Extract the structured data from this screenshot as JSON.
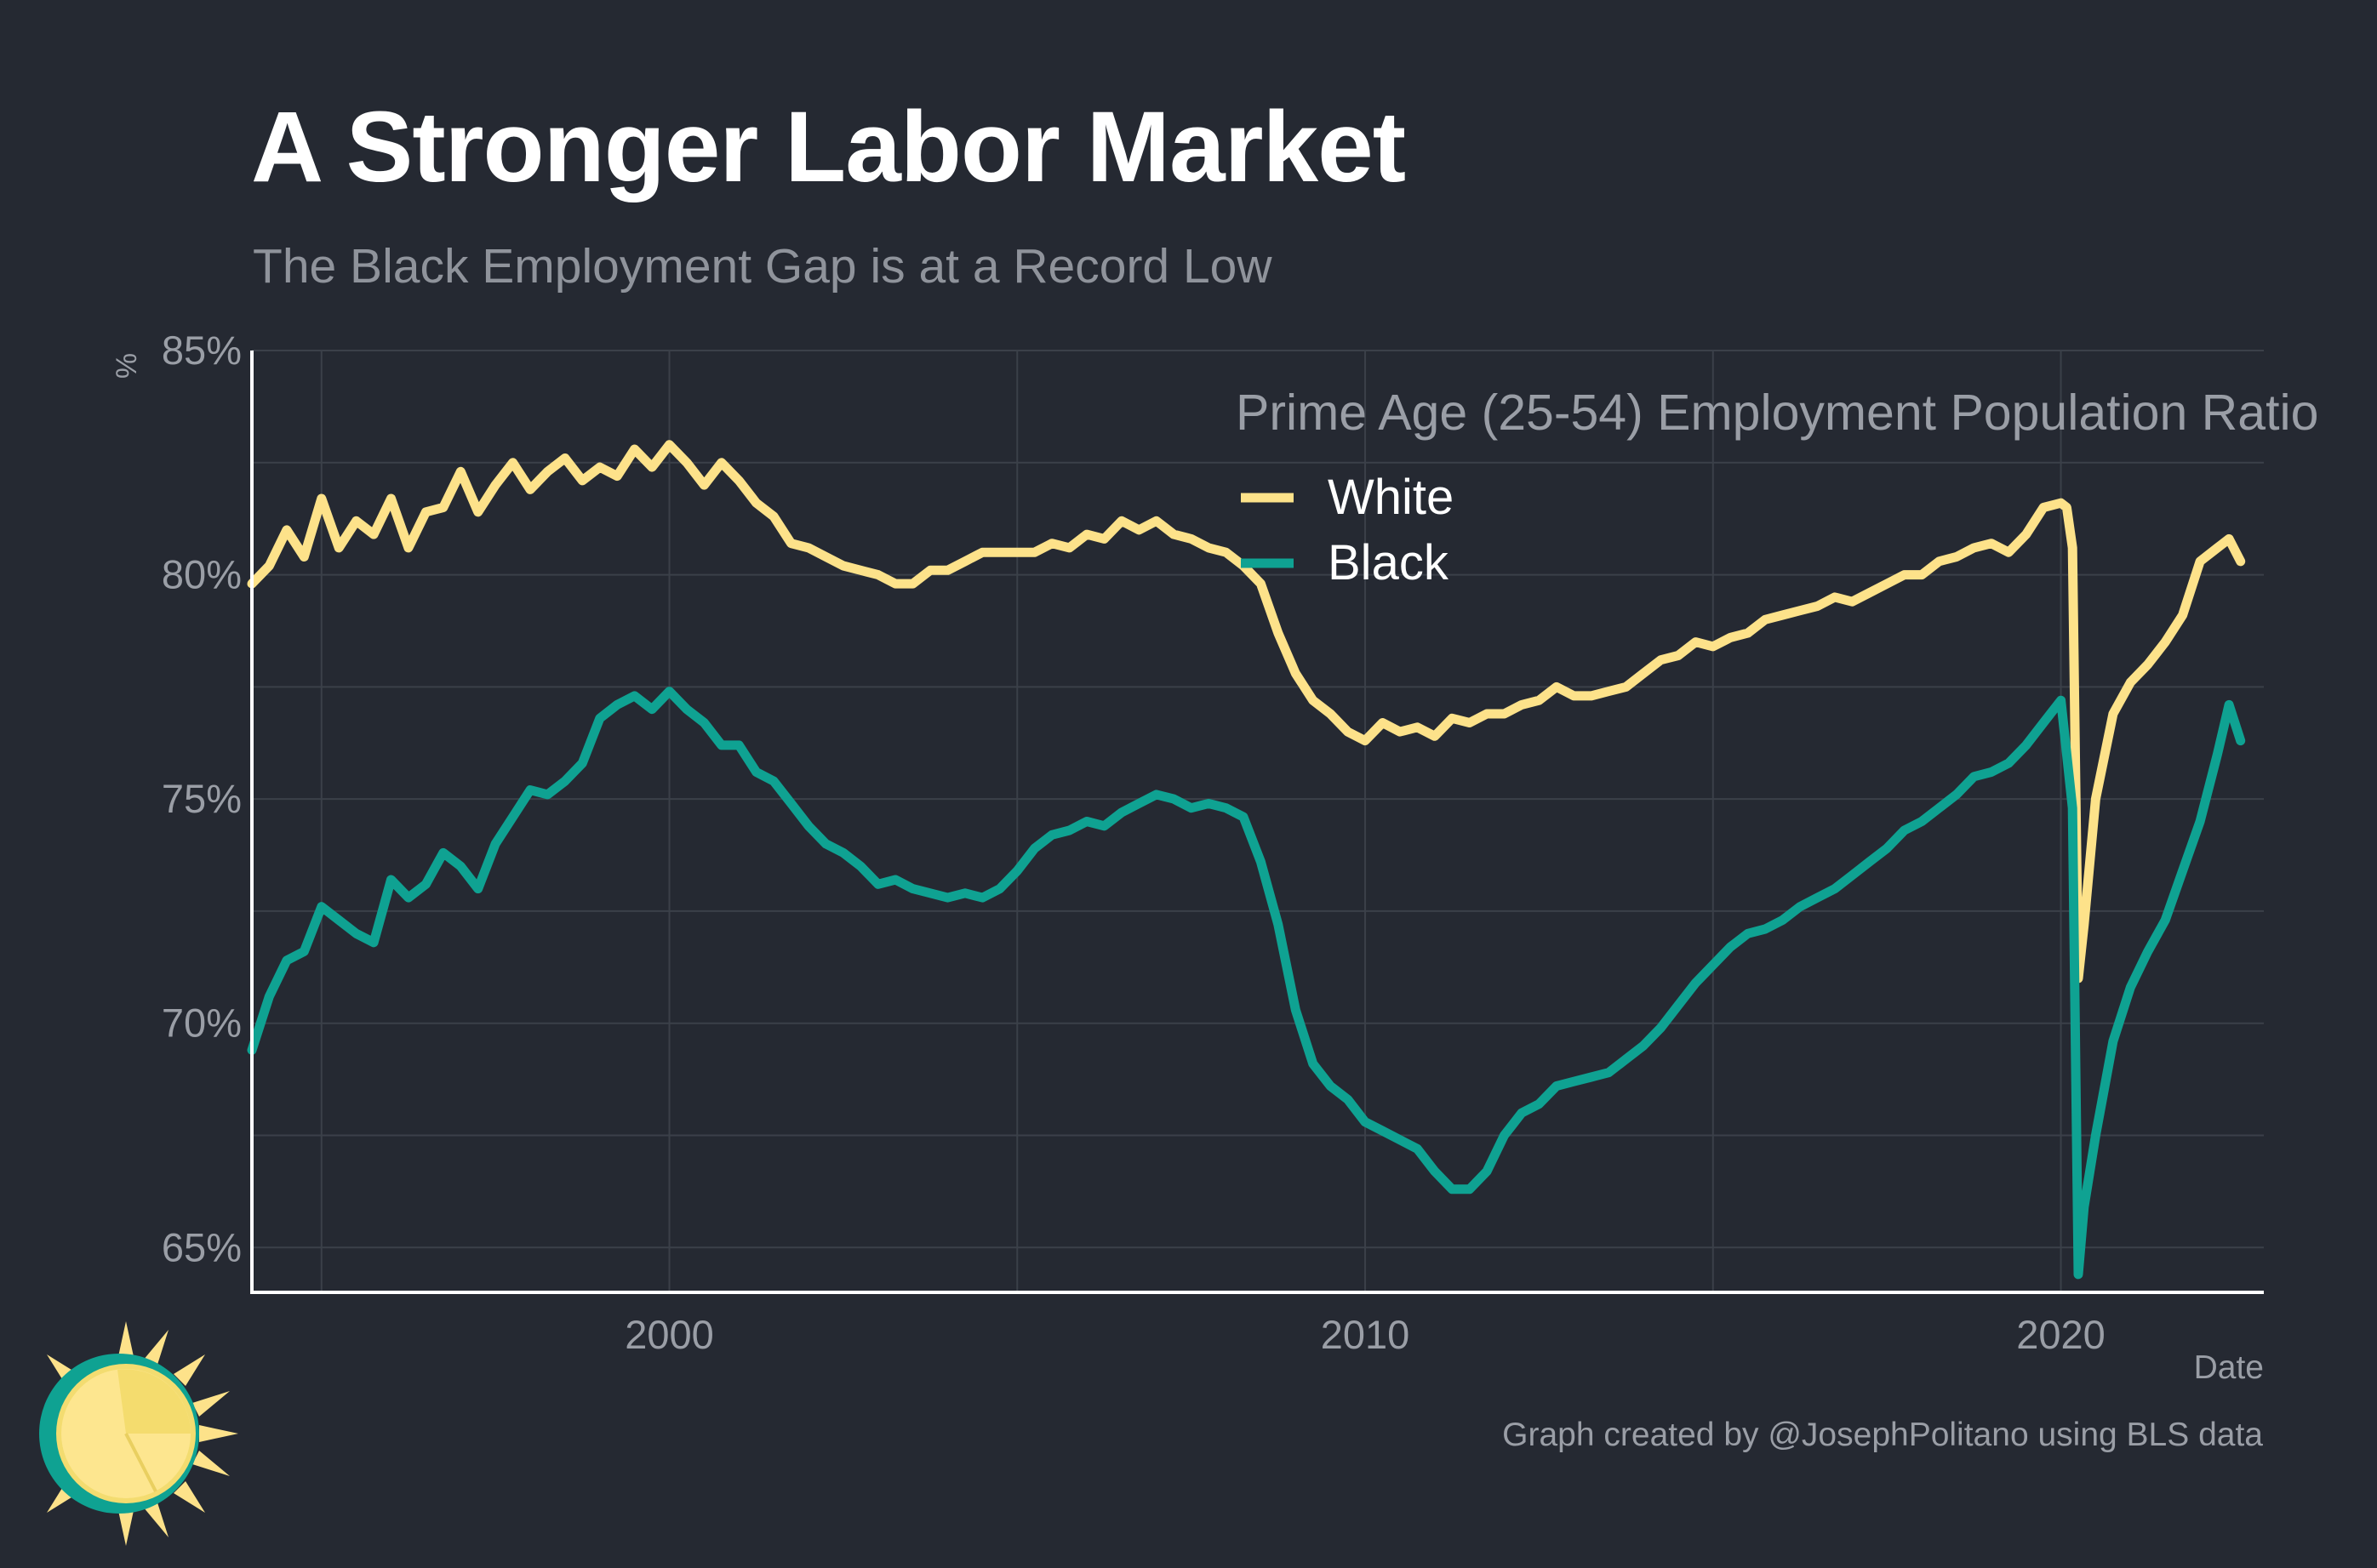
{
  "title": "A Stronger Labor Market",
  "subtitle": "The Black Employment Gap is at a Record Low",
  "caption": "Graph created by @JosephPolitano using BLS data",
  "colors": {
    "background": "#252932",
    "grid": "#3b4049",
    "axis": "#ffffff",
    "white_series": "#fde28a",
    "black_series": "#0fa292",
    "muted_text": "#9a9ea6"
  },
  "logo": {
    "name": "sun-logo-icon"
  },
  "chart_data": {
    "type": "line",
    "title": "A Stronger Labor Market",
    "subtitle": "The Black Employment Gap is at a Record Low",
    "xlabel": "Date",
    "ylabel": "%",
    "legend_title": "Prime Age (25-54) Employment Population Ratio",
    "legend_position": "top-right",
    "grid": true,
    "xlim": [
      "1994-01",
      "2022-12"
    ],
    "ylim": [
      64,
      85
    ],
    "x_ticks": [
      {
        "value": 2000,
        "label": "2000"
      },
      {
        "value": 2010,
        "label": "2010"
      },
      {
        "value": 2020,
        "label": "2020"
      }
    ],
    "y_ticks": [
      {
        "value": 65,
        "label": "65%"
      },
      {
        "value": 70,
        "label": "70%"
      },
      {
        "value": 75,
        "label": "75%"
      },
      {
        "value": 80,
        "label": "80%"
      },
      {
        "value": 85,
        "label": "85%"
      }
    ],
    "series": [
      {
        "name": "White",
        "color": "#fde28a",
        "points": [
          [
            "1994-01",
            79.8
          ],
          [
            "1994-04",
            80.2
          ],
          [
            "1994-07",
            81.0
          ],
          [
            "1994-10",
            80.4
          ],
          [
            "1995-01",
            81.7
          ],
          [
            "1995-04",
            80.6
          ],
          [
            "1995-07",
            81.2
          ],
          [
            "1995-10",
            80.9
          ],
          [
            "1996-01",
            81.7
          ],
          [
            "1996-04",
            80.6
          ],
          [
            "1996-07",
            81.4
          ],
          [
            "1996-10",
            81.5
          ],
          [
            "1997-01",
            82.3
          ],
          [
            "1997-04",
            81.4
          ],
          [
            "1997-07",
            82.0
          ],
          [
            "1997-10",
            82.5
          ],
          [
            "1998-01",
            81.9
          ],
          [
            "1998-04",
            82.3
          ],
          [
            "1998-07",
            82.6
          ],
          [
            "1998-10",
            82.1
          ],
          [
            "1999-01",
            82.4
          ],
          [
            "1999-04",
            82.2
          ],
          [
            "1999-07",
            82.8
          ],
          [
            "1999-10",
            82.4
          ],
          [
            "2000-01",
            82.9
          ],
          [
            "2000-04",
            82.5
          ],
          [
            "2000-07",
            82.0
          ],
          [
            "2000-10",
            82.5
          ],
          [
            "2001-01",
            82.1
          ],
          [
            "2001-04",
            81.6
          ],
          [
            "2001-07",
            81.3
          ],
          [
            "2001-10",
            80.7
          ],
          [
            "2002-01",
            80.6
          ],
          [
            "2002-04",
            80.4
          ],
          [
            "2002-07",
            80.2
          ],
          [
            "2002-10",
            80.1
          ],
          [
            "2003-01",
            80.0
          ],
          [
            "2003-04",
            79.8
          ],
          [
            "2003-07",
            79.8
          ],
          [
            "2003-10",
            80.1
          ],
          [
            "2004-01",
            80.1
          ],
          [
            "2004-04",
            80.3
          ],
          [
            "2004-07",
            80.5
          ],
          [
            "2004-10",
            80.5
          ],
          [
            "2005-01",
            80.5
          ],
          [
            "2005-04",
            80.5
          ],
          [
            "2005-07",
            80.7
          ],
          [
            "2005-10",
            80.6
          ],
          [
            "2006-01",
            80.9
          ],
          [
            "2006-04",
            80.8
          ],
          [
            "2006-07",
            81.2
          ],
          [
            "2006-10",
            81.0
          ],
          [
            "2007-01",
            81.2
          ],
          [
            "2007-04",
            80.9
          ],
          [
            "2007-07",
            80.8
          ],
          [
            "2007-10",
            80.6
          ],
          [
            "2008-01",
            80.5
          ],
          [
            "2008-04",
            80.2
          ],
          [
            "2008-07",
            79.8
          ],
          [
            "2008-10",
            78.7
          ],
          [
            "2009-01",
            77.8
          ],
          [
            "2009-04",
            77.2
          ],
          [
            "2009-07",
            76.9
          ],
          [
            "2009-10",
            76.5
          ],
          [
            "2010-01",
            76.3
          ],
          [
            "2010-04",
            76.7
          ],
          [
            "2010-07",
            76.5
          ],
          [
            "2010-10",
            76.6
          ],
          [
            "2011-01",
            76.4
          ],
          [
            "2011-04",
            76.8
          ],
          [
            "2011-07",
            76.7
          ],
          [
            "2011-10",
            76.9
          ],
          [
            "2012-01",
            76.9
          ],
          [
            "2012-04",
            77.1
          ],
          [
            "2012-07",
            77.2
          ],
          [
            "2012-10",
            77.5
          ],
          [
            "2013-01",
            77.3
          ],
          [
            "2013-04",
            77.3
          ],
          [
            "2013-07",
            77.4
          ],
          [
            "2013-10",
            77.5
          ],
          [
            "2014-01",
            77.8
          ],
          [
            "2014-04",
            78.1
          ],
          [
            "2014-07",
            78.2
          ],
          [
            "2014-10",
            78.5
          ],
          [
            "2015-01",
            78.4
          ],
          [
            "2015-04",
            78.6
          ],
          [
            "2015-07",
            78.7
          ],
          [
            "2015-10",
            79.0
          ],
          [
            "2016-01",
            79.1
          ],
          [
            "2016-04",
            79.2
          ],
          [
            "2016-07",
            79.3
          ],
          [
            "2016-10",
            79.5
          ],
          [
            "2017-01",
            79.4
          ],
          [
            "2017-04",
            79.6
          ],
          [
            "2017-07",
            79.8
          ],
          [
            "2017-10",
            80.0
          ],
          [
            "2018-01",
            80.0
          ],
          [
            "2018-04",
            80.3
          ],
          [
            "2018-07",
            80.4
          ],
          [
            "2018-10",
            80.6
          ],
          [
            "2019-01",
            80.7
          ],
          [
            "2019-04",
            80.5
          ],
          [
            "2019-07",
            80.9
          ],
          [
            "2019-10",
            81.5
          ],
          [
            "2020-01",
            81.6
          ],
          [
            "2020-02",
            81.5
          ],
          [
            "2020-03",
            80.6
          ],
          [
            "2020-04",
            71.0
          ],
          [
            "2020-05",
            72.2
          ],
          [
            "2020-07",
            75.0
          ],
          [
            "2020-10",
            76.9
          ],
          [
            "2021-01",
            77.6
          ],
          [
            "2021-04",
            78.0
          ],
          [
            "2021-07",
            78.5
          ],
          [
            "2021-10",
            79.1
          ],
          [
            "2022-01",
            80.3
          ],
          [
            "2022-04",
            80.6
          ],
          [
            "2022-06",
            80.8
          ],
          [
            "2022-08",
            80.3
          ]
        ]
      },
      {
        "name": "Black",
        "color": "#0fa292",
        "points": [
          [
            "1994-01",
            69.4
          ],
          [
            "1994-04",
            70.6
          ],
          [
            "1994-07",
            71.4
          ],
          [
            "1994-10",
            71.6
          ],
          [
            "1995-01",
            72.6
          ],
          [
            "1995-04",
            72.3
          ],
          [
            "1995-07",
            72.0
          ],
          [
            "1995-10",
            71.8
          ],
          [
            "1996-01",
            73.2
          ],
          [
            "1996-04",
            72.8
          ],
          [
            "1996-07",
            73.1
          ],
          [
            "1996-10",
            73.8
          ],
          [
            "1997-01",
            73.5
          ],
          [
            "1997-04",
            73.0
          ],
          [
            "1997-07",
            74.0
          ],
          [
            "1997-10",
            74.6
          ],
          [
            "1998-01",
            75.2
          ],
          [
            "1998-04",
            75.1
          ],
          [
            "1998-07",
            75.4
          ],
          [
            "1998-10",
            75.8
          ],
          [
            "1999-01",
            76.8
          ],
          [
            "1999-04",
            77.1
          ],
          [
            "1999-07",
            77.3
          ],
          [
            "1999-10",
            77.0
          ],
          [
            "2000-01",
            77.4
          ],
          [
            "2000-04",
            77.0
          ],
          [
            "2000-07",
            76.7
          ],
          [
            "2000-10",
            76.2
          ],
          [
            "2001-01",
            76.2
          ],
          [
            "2001-04",
            75.6
          ],
          [
            "2001-07",
            75.4
          ],
          [
            "2001-10",
            74.9
          ],
          [
            "2002-01",
            74.4
          ],
          [
            "2002-04",
            74.0
          ],
          [
            "2002-07",
            73.8
          ],
          [
            "2002-10",
            73.5
          ],
          [
            "2003-01",
            73.1
          ],
          [
            "2003-04",
            73.2
          ],
          [
            "2003-07",
            73.0
          ],
          [
            "2003-10",
            72.9
          ],
          [
            "2004-01",
            72.8
          ],
          [
            "2004-04",
            72.9
          ],
          [
            "2004-07",
            72.8
          ],
          [
            "2004-10",
            73.0
          ],
          [
            "2005-01",
            73.4
          ],
          [
            "2005-04",
            73.9
          ],
          [
            "2005-07",
            74.2
          ],
          [
            "2005-10",
            74.3
          ],
          [
            "2006-01",
            74.5
          ],
          [
            "2006-04",
            74.4
          ],
          [
            "2006-07",
            74.7
          ],
          [
            "2006-10",
            74.9
          ],
          [
            "2007-01",
            75.1
          ],
          [
            "2007-04",
            75.0
          ],
          [
            "2007-07",
            74.8
          ],
          [
            "2007-10",
            74.9
          ],
          [
            "2008-01",
            74.8
          ],
          [
            "2008-04",
            74.6
          ],
          [
            "2008-07",
            73.6
          ],
          [
            "2008-10",
            72.2
          ],
          [
            "2009-01",
            70.3
          ],
          [
            "2009-04",
            69.1
          ],
          [
            "2009-07",
            68.6
          ],
          [
            "2009-10",
            68.3
          ],
          [
            "2010-01",
            67.8
          ],
          [
            "2010-04",
            67.6
          ],
          [
            "2010-07",
            67.4
          ],
          [
            "2010-10",
            67.2
          ],
          [
            "2011-01",
            66.7
          ],
          [
            "2011-04",
            66.3
          ],
          [
            "2011-07",
            66.3
          ],
          [
            "2011-10",
            66.7
          ],
          [
            "2012-01",
            67.5
          ],
          [
            "2012-04",
            68.0
          ],
          [
            "2012-07",
            68.2
          ],
          [
            "2012-10",
            68.6
          ],
          [
            "2013-01",
            68.7
          ],
          [
            "2013-04",
            68.8
          ],
          [
            "2013-07",
            68.9
          ],
          [
            "2013-10",
            69.2
          ],
          [
            "2014-01",
            69.5
          ],
          [
            "2014-04",
            69.9
          ],
          [
            "2014-07",
            70.4
          ],
          [
            "2014-10",
            70.9
          ],
          [
            "2015-01",
            71.3
          ],
          [
            "2015-04",
            71.7
          ],
          [
            "2015-07",
            72.0
          ],
          [
            "2015-10",
            72.1
          ],
          [
            "2016-01",
            72.3
          ],
          [
            "2016-04",
            72.6
          ],
          [
            "2016-07",
            72.8
          ],
          [
            "2016-10",
            73.0
          ],
          [
            "2017-01",
            73.3
          ],
          [
            "2017-04",
            73.6
          ],
          [
            "2017-07",
            73.9
          ],
          [
            "2017-10",
            74.3
          ],
          [
            "2018-01",
            74.5
          ],
          [
            "2018-04",
            74.8
          ],
          [
            "2018-07",
            75.1
          ],
          [
            "2018-10",
            75.5
          ],
          [
            "2019-01",
            75.6
          ],
          [
            "2019-04",
            75.8
          ],
          [
            "2019-07",
            76.2
          ],
          [
            "2019-10",
            76.7
          ],
          [
            "2020-01",
            77.2
          ],
          [
            "2020-02",
            76.0
          ],
          [
            "2020-03",
            74.8
          ],
          [
            "2020-04",
            64.4
          ],
          [
            "2020-05",
            65.9
          ],
          [
            "2020-07",
            67.5
          ],
          [
            "2020-10",
            69.6
          ],
          [
            "2021-01",
            70.8
          ],
          [
            "2021-04",
            71.6
          ],
          [
            "2021-07",
            72.3
          ],
          [
            "2021-10",
            73.4
          ],
          [
            "2022-01",
            74.5
          ],
          [
            "2022-04",
            76.0
          ],
          [
            "2022-06",
            77.1
          ],
          [
            "2022-08",
            76.3
          ]
        ]
      }
    ]
  }
}
